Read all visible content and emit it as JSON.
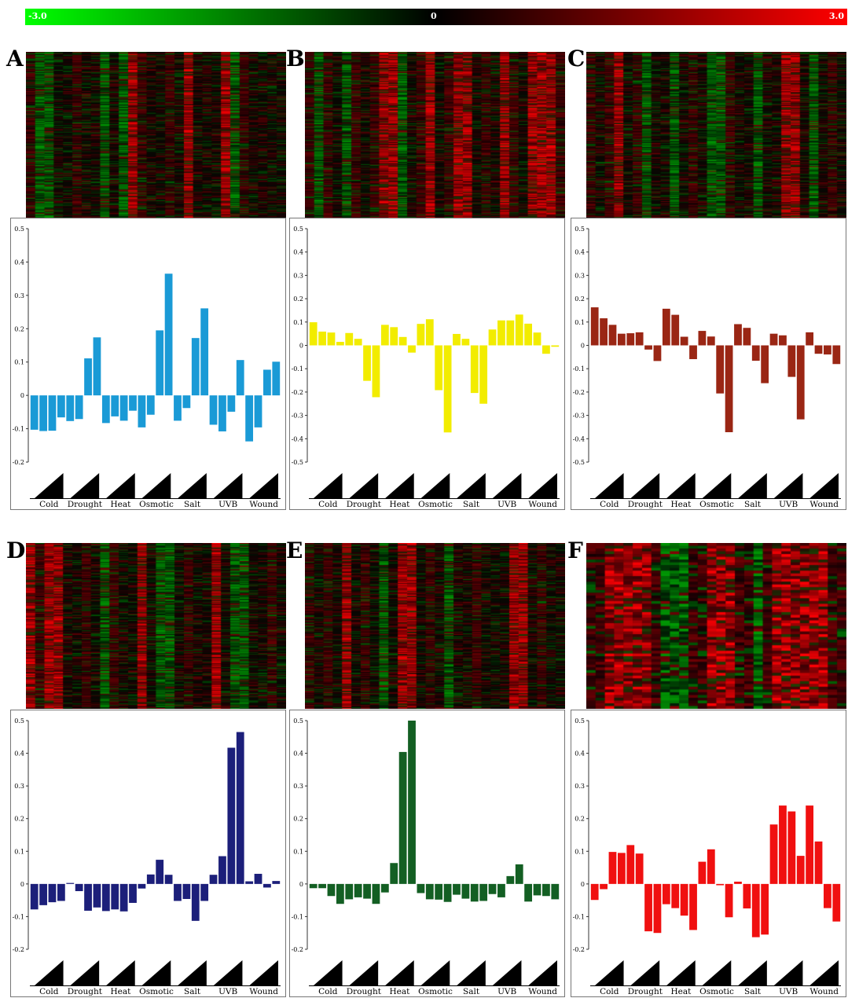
{
  "colorbar": {
    "min_label": "-3.0",
    "mid_label": "0",
    "max_label": "3.0",
    "colors": {
      "low": "#00ff00",
      "mid": "#000000",
      "high": "#ff0000"
    }
  },
  "chart_data": [
    {
      "type": "bar",
      "panel": "A",
      "color": "#1a9ad6",
      "conditions": [
        "Cold",
        "Drought",
        "Heat",
        "Osmotic",
        "Salt",
        "UVB",
        "Wound"
      ],
      "ylim": [
        -0.2,
        0.5
      ],
      "yticks": [
        "0.5",
        "0.4",
        "0.3",
        "0.2",
        "0.1",
        "0",
        "-0.1",
        "-0.2"
      ],
      "values": [
        -0.103,
        -0.107,
        -0.106,
        -0.066,
        -0.077,
        -0.071,
        0.111,
        0.174,
        -0.083,
        -0.063,
        -0.076,
        -0.046,
        -0.096,
        -0.058,
        0.195,
        0.365,
        -0.076,
        -0.038,
        0.172,
        0.261,
        -0.088,
        -0.108,
        -0.049,
        0.106,
        -0.138,
        -0.096,
        0.077,
        0.101
      ]
    },
    {
      "type": "bar",
      "panel": "B",
      "color": "#f2ec00",
      "conditions": [
        "Cold",
        "Drought",
        "Heat",
        "Osmotic",
        "Salt",
        "UVB",
        "Wound"
      ],
      "ylim": [
        -0.5,
        0.5
      ],
      "yticks": [
        "0.5",
        "0.4",
        "0.3",
        "0.2",
        "0.1",
        "0",
        "-0.1",
        "-0.2",
        "-0.3",
        "-0.4",
        "-0.5"
      ],
      "values": [
        0.099,
        0.059,
        0.055,
        0.015,
        0.053,
        0.028,
        -0.152,
        -0.222,
        0.088,
        0.078,
        0.036,
        -0.031,
        0.092,
        0.112,
        -0.192,
        -0.373,
        0.049,
        0.028,
        -0.204,
        -0.25,
        0.068,
        0.107,
        0.107,
        0.132,
        0.093,
        0.055,
        -0.036,
        -0.006
      ]
    },
    {
      "type": "bar",
      "panel": "C",
      "color": "#9a2614",
      "conditions": [
        "Cold",
        "Drought",
        "Heat",
        "Osmotic",
        "Salt",
        "UVB",
        "Wound"
      ],
      "ylim": [
        -0.5,
        0.5
      ],
      "yticks": [
        "0.5",
        "0.4",
        "0.3",
        "0.2",
        "0.1",
        "0",
        "-0.1",
        "-0.2",
        "-0.3",
        "-0.4",
        "-0.5"
      ],
      "values": [
        0.163,
        0.116,
        0.088,
        0.05,
        0.052,
        0.056,
        -0.018,
        -0.067,
        0.157,
        0.131,
        0.037,
        -0.059,
        0.062,
        0.038,
        -0.206,
        -0.372,
        0.091,
        0.075,
        -0.066,
        -0.162,
        0.05,
        0.043,
        -0.135,
        -0.317,
        0.056,
        -0.036,
        -0.039,
        -0.08
      ]
    },
    {
      "type": "bar",
      "panel": "D",
      "color": "#1c1f7a",
      "conditions": [
        "Cold",
        "Drought",
        "Heat",
        "Osmotic",
        "Salt",
        "UVB",
        "Wound"
      ],
      "ylim": [
        -0.2,
        0.5
      ],
      "yticks": [
        "0.5",
        "0.4",
        "0.3",
        "0.2",
        "0.1",
        "0",
        "-0.1",
        "-0.2"
      ],
      "values": [
        -0.078,
        -0.065,
        -0.056,
        -0.052,
        0.003,
        -0.022,
        -0.082,
        -0.072,
        -0.083,
        -0.078,
        -0.084,
        -0.058,
        -0.014,
        0.029,
        0.074,
        0.028,
        -0.052,
        -0.046,
        -0.113,
        -0.052,
        0.028,
        0.085,
        0.417,
        0.465,
        0.008,
        0.031,
        -0.011,
        0.009
      ]
    },
    {
      "type": "bar",
      "panel": "E",
      "color": "#135f23",
      "conditions": [
        "Cold",
        "Drought",
        "Heat",
        "Osmotic",
        "Salt",
        "UVB",
        "Wound"
      ],
      "ylim": [
        -0.2,
        0.5
      ],
      "yticks": [
        "0.5",
        "0.4",
        "0.3",
        "0.2",
        "0.1",
        "0",
        "-0.1",
        "-0.2"
      ],
      "values": [
        -0.013,
        -0.013,
        -0.037,
        -0.061,
        -0.047,
        -0.041,
        -0.045,
        -0.061,
        -0.026,
        0.064,
        0.404,
        0.5,
        -0.028,
        -0.047,
        -0.048,
        -0.055,
        -0.033,
        -0.045,
        -0.054,
        -0.052,
        -0.031,
        -0.041,
        0.024,
        0.06,
        -0.054,
        -0.035,
        -0.037,
        -0.047
      ]
    },
    {
      "type": "bar",
      "panel": "F",
      "color": "#f01010",
      "conditions": [
        "Cold",
        "Drought",
        "Heat",
        "Osmotic",
        "Salt",
        "UVB",
        "Wound"
      ],
      "ylim": [
        -0.2,
        0.5
      ],
      "yticks": [
        "0.5",
        "0.4",
        "0.3",
        "0.2",
        "0.1",
        "0",
        "-0.1",
        "-0.2"
      ],
      "values": [
        -0.049,
        -0.016,
        0.098,
        0.095,
        0.119,
        0.093,
        -0.145,
        -0.15,
        -0.062,
        -0.074,
        -0.097,
        -0.141,
        0.068,
        0.106,
        -0.004,
        -0.102,
        0.007,
        -0.075,
        -0.163,
        -0.155,
        0.182,
        0.24,
        0.222,
        0.086,
        0.24,
        0.13,
        -0.074,
        -0.115
      ]
    }
  ],
  "heatmaps": {
    "A": {
      "red_cols": [
        11,
        17,
        21
      ],
      "green_cols": [
        1,
        2,
        8,
        10,
        22
      ],
      "dark_red_cols": [
        0,
        5,
        12,
        15,
        23
      ],
      "rows": 220
    },
    "B": {
      "red_cols": [
        8,
        9,
        13,
        16,
        17,
        21,
        24,
        25,
        26
      ],
      "green_cols": [
        1,
        4,
        10
      ],
      "dark_red_cols": [
        0,
        2,
        5,
        7,
        12,
        15,
        19,
        22,
        27
      ],
      "rows": 220
    },
    "C": {
      "red_cols": [
        3,
        21,
        22
      ],
      "green_cols": [
        6,
        9,
        13,
        14,
        18,
        24
      ],
      "dark_red_cols": [
        0,
        2,
        5,
        11,
        15,
        26
      ],
      "rows": 220
    },
    "D": {
      "red_cols": [
        0,
        2,
        3,
        12,
        20
      ],
      "green_cols": [
        14,
        15,
        22,
        23,
        8
      ],
      "dark_red_cols": [
        1,
        6,
        9,
        17,
        26
      ],
      "rows": 220
    },
    "E": {
      "red_cols": [
        11,
        10,
        22,
        23,
        4
      ],
      "green_cols": [
        8,
        15
      ],
      "dark_red_cols": [
        0,
        2,
        6,
        13,
        18,
        25
      ],
      "rows": 220
    },
    "F": {
      "red_cols": [
        2,
        3,
        4,
        5,
        6,
        13,
        14,
        15,
        20,
        21,
        22,
        23,
        24,
        25
      ],
      "green_cols": [
        8,
        9,
        10,
        18
      ],
      "dark_red_cols": [
        0,
        1,
        7,
        11,
        12,
        16,
        17,
        19,
        26,
        27
      ],
      "rows": 60
    }
  }
}
